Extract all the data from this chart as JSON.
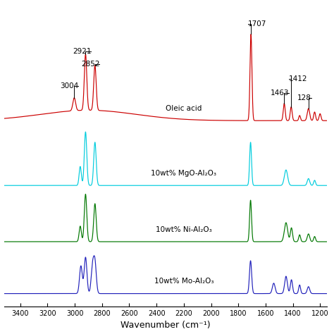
{
  "xlabel": "Wavenumber (cm⁻¹)",
  "colors": {
    "oleic_acid": "#cc0000",
    "mgo": "#00ccdd",
    "ni": "#007700",
    "mo": "#2222bb"
  },
  "labels": {
    "oleic_acid": "Oleic acid",
    "mgo": "10wt% MgO-Al₂O₃",
    "ni": "10wt% Ni-Al₂O₃",
    "mo": "10wt% Mo-Al₂O₃"
  },
  "x_ticks": [
    3400,
    3200,
    3000,
    2800,
    2600,
    2400,
    2200,
    2000,
    1800,
    1600,
    1400,
    1200
  ],
  "background_color": "#ffffff"
}
